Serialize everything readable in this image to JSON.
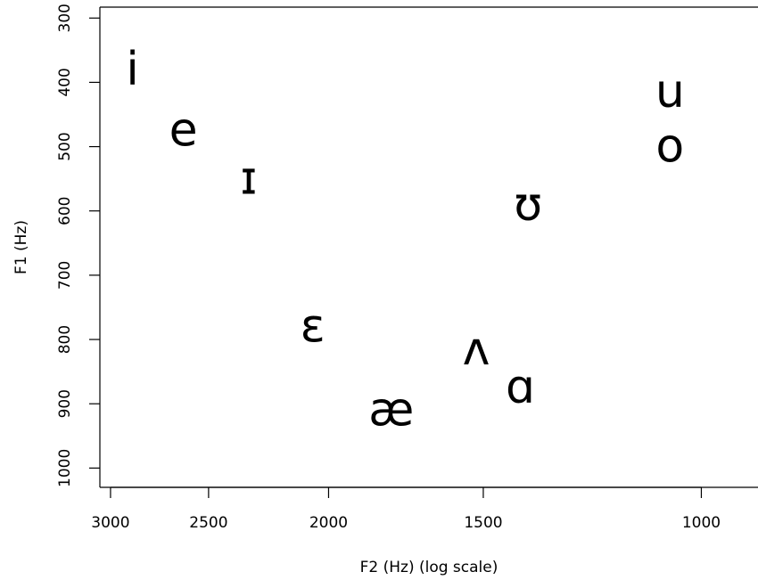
{
  "chart_data": {
    "type": "scatter",
    "title": "",
    "xlabel": "F2 (Hz) (log scale)",
    "ylabel": "F1 (Hz)",
    "x_scale": "log",
    "x_reversed": true,
    "y_reversed": true,
    "xlim": [
      3060,
      900
    ],
    "ylim": [
      1030,
      283
    ],
    "x_ticks": [
      3000,
      2500,
      2000,
      1500,
      1000
    ],
    "x_tick_labels": [
      "3000",
      "2500",
      "2000",
      "1500",
      "1000"
    ],
    "y_ticks": [
      300,
      400,
      500,
      600,
      700,
      800,
      900,
      1000
    ],
    "y_tick_labels": [
      "300",
      "400",
      "500",
      "600",
      "700",
      "800",
      "900",
      "1000"
    ],
    "grid": false,
    "legend": "none",
    "points": [
      {
        "label": "i",
        "x": 2880,
        "y": 380
      },
      {
        "label": "e",
        "x": 2620,
        "y": 475
      },
      {
        "label": "ɪ",
        "x": 2320,
        "y": 550
      },
      {
        "label": "ɛ",
        "x": 2060,
        "y": 780
      },
      {
        "label": "æ",
        "x": 1780,
        "y": 910
      },
      {
        "label": "ʌ",
        "x": 1520,
        "y": 815
      },
      {
        "label": "ɑ",
        "x": 1400,
        "y": 875
      },
      {
        "label": "ʊ",
        "x": 1380,
        "y": 590
      },
      {
        "label": "u",
        "x": 1060,
        "y": 415
      },
      {
        "label": "o",
        "x": 1060,
        "y": 500
      }
    ]
  }
}
